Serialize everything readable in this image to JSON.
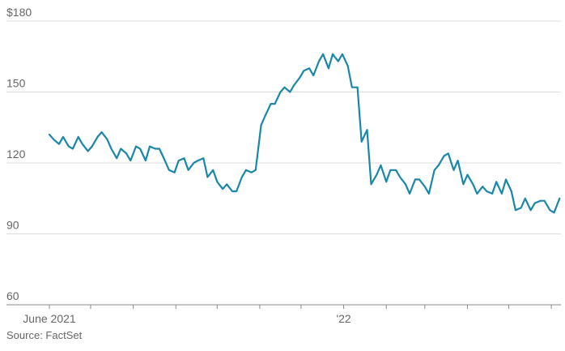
{
  "chart_data": {
    "type": "line",
    "title": "",
    "xlabel": "",
    "ylabel": "",
    "ylim": [
      60,
      180
    ],
    "y_ticks": [
      {
        "value": 180,
        "label": "$180"
      },
      {
        "value": 150,
        "label": "150"
      },
      {
        "value": 120,
        "label": "120"
      },
      {
        "value": 90,
        "label": "90"
      },
      {
        "value": 60,
        "label": "60"
      }
    ],
    "x_range": [
      "2021-06-01",
      "2022-06-08"
    ],
    "x_tick_dates": [
      "2021-06-01",
      "2021-07-01",
      "2021-08-01",
      "2021-09-01",
      "2021-10-01",
      "2021-11-01",
      "2021-12-01",
      "2022-01-01",
      "2022-02-01",
      "2022-03-01",
      "2022-04-01",
      "2022-05-01",
      "2022-06-01"
    ],
    "x_tick_labels": [
      {
        "date": "2021-06-01",
        "label": "June 2021"
      },
      {
        "date": "2022-01-01",
        "label": "'22"
      }
    ],
    "grid": true,
    "line_color": "#1a86a8",
    "series": [
      {
        "x": [
          "2021-06-01",
          "2021-06-04",
          "2021-06-08",
          "2021-06-11",
          "2021-06-15",
          "2021-06-18",
          "2021-06-22",
          "2021-06-25",
          "2021-06-29",
          "2021-07-02",
          "2021-07-06",
          "2021-07-09",
          "2021-07-13",
          "2021-07-16",
          "2021-07-20",
          "2021-07-23",
          "2021-07-27",
          "2021-07-30",
          "2021-08-03",
          "2021-08-06",
          "2021-08-10",
          "2021-08-13",
          "2021-08-17",
          "2021-08-20",
          "2021-08-24",
          "2021-08-27",
          "2021-08-31",
          "2021-09-03",
          "2021-09-07",
          "2021-09-10",
          "2021-09-14",
          "2021-09-17",
          "2021-09-21",
          "2021-09-24",
          "2021-09-28",
          "2021-10-01",
          "2021-10-05",
          "2021-10-08",
          "2021-10-12",
          "2021-10-15",
          "2021-10-19",
          "2021-10-22",
          "2021-10-26",
          "2021-10-29",
          "2021-11-02",
          "2021-11-05",
          "2021-11-09",
          "2021-11-12",
          "2021-11-16",
          "2021-11-19",
          "2021-11-23",
          "2021-11-26",
          "2021-11-30",
          "2021-12-03",
          "2021-12-07",
          "2021-12-10",
          "2021-12-14",
          "2021-12-17",
          "2021-12-21",
          "2021-12-24",
          "2021-12-28",
          "2021-12-31",
          "2022-01-04",
          "2022-01-07",
          "2022-01-11",
          "2022-01-14",
          "2022-01-18",
          "2022-01-21",
          "2022-01-25",
          "2022-01-28",
          "2022-02-01",
          "2022-02-04",
          "2022-02-08",
          "2022-02-11",
          "2022-02-15",
          "2022-02-18",
          "2022-02-22",
          "2022-02-25",
          "2022-03-01",
          "2022-03-04",
          "2022-03-08",
          "2022-03-11",
          "2022-03-15",
          "2022-03-18",
          "2022-03-22",
          "2022-03-25",
          "2022-03-29",
          "2022-04-01",
          "2022-04-05",
          "2022-04-08",
          "2022-04-12",
          "2022-04-15",
          "2022-04-19",
          "2022-04-22",
          "2022-04-26",
          "2022-04-29",
          "2022-05-03",
          "2022-05-06",
          "2022-05-10",
          "2022-05-13",
          "2022-05-17",
          "2022-05-20",
          "2022-05-24",
          "2022-05-27",
          "2022-05-31",
          "2022-06-03",
          "2022-06-07"
        ],
        "y": [
          132,
          130,
          128,
          131,
          127,
          126,
          131,
          128,
          125,
          127,
          131,
          133,
          130,
          126,
          122,
          126,
          124,
          121,
          127,
          126,
          121,
          127,
          126,
          126,
          121,
          117,
          116,
          121,
          122,
          117,
          120,
          121,
          122,
          114,
          117,
          112,
          109,
          111,
          108,
          108,
          114,
          117,
          116,
          117,
          136,
          140,
          145,
          145,
          150,
          152,
          150,
          153,
          156,
          159,
          160,
          157,
          163,
          166,
          160,
          166,
          163,
          166,
          161,
          152,
          152,
          129,
          134,
          111,
          115,
          119,
          112,
          117,
          117,
          114,
          111,
          107,
          113,
          113,
          110,
          107,
          117,
          119,
          123,
          124,
          117,
          121,
          111,
          115,
          111,
          107,
          110,
          108,
          107,
          112,
          107,
          113,
          108,
          100,
          101,
          105,
          100,
          103,
          104,
          104,
          100,
          99,
          105
        ]
      }
    ],
    "source": "Source: FactSet"
  }
}
